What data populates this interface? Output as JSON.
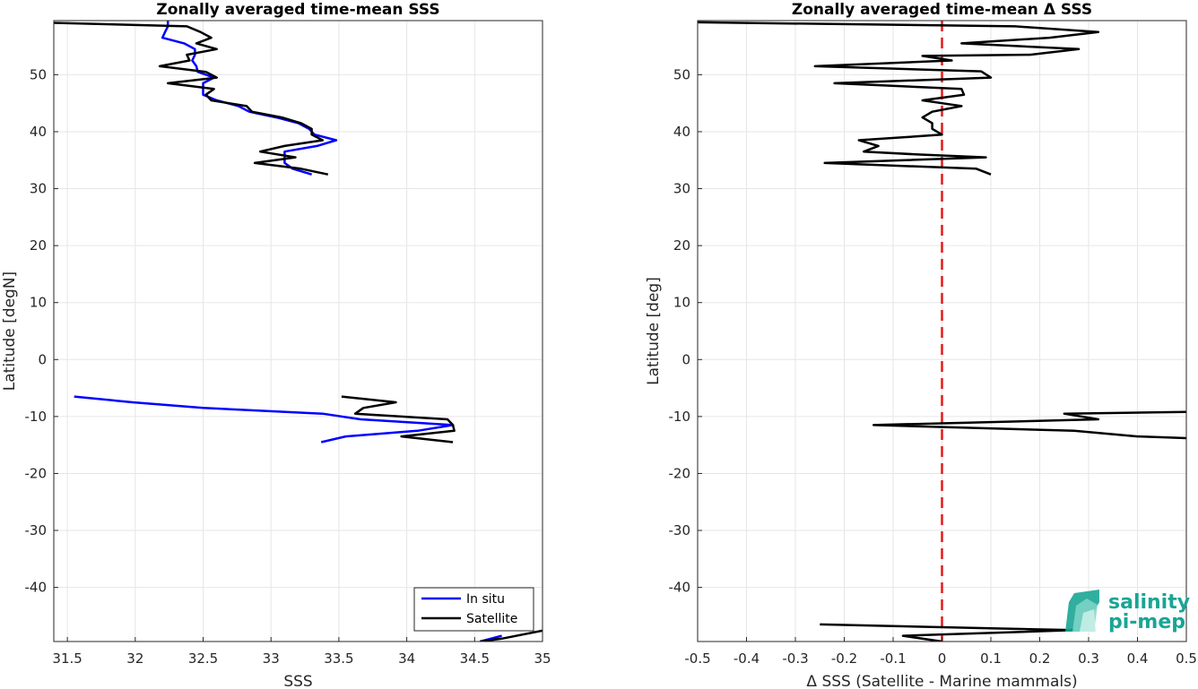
{
  "chart_data": [
    {
      "type": "line",
      "title": "Zonally averaged time-mean SSS",
      "xlabel": "SSS",
      "ylabel": "Latitude [degN]",
      "xlim": [
        31.4,
        35.0
      ],
      "ylim": [
        -49.5,
        59.5
      ],
      "xticks": [
        31.5,
        32,
        32.5,
        33,
        33.5,
        34,
        34.5,
        35
      ],
      "yticks": [
        -40,
        -30,
        -20,
        -10,
        0,
        10,
        20,
        30,
        40,
        50
      ],
      "grid": true,
      "legend": {
        "placement": "bottom-right",
        "entries": [
          "In situ",
          "Satellite"
        ]
      },
      "series": [
        {
          "name": "In situ",
          "color": "#0000ff",
          "segments": [
            [
              [
                32.24,
                59.5
              ],
              [
                32.24,
                58.5
              ],
              [
                32.22,
                57.5
              ],
              [
                32.2,
                56.5
              ],
              [
                32.36,
                55.5
              ],
              [
                32.44,
                54.5
              ],
              [
                32.44,
                53.5
              ],
              [
                32.42,
                52.5
              ],
              [
                32.45,
                51.5
              ],
              [
                32.46,
                50.5
              ],
              [
                32.58,
                49.5
              ],
              [
                32.5,
                48.5
              ],
              [
                32.5,
                47.5
              ],
              [
                32.5,
                46.5
              ],
              [
                32.6,
                45.5
              ],
              [
                32.76,
                44.5
              ],
              [
                32.84,
                43.5
              ],
              [
                33.04,
                42.5
              ],
              [
                33.2,
                41.5
              ],
              [
                33.28,
                40.5
              ],
              [
                33.32,
                39.5
              ],
              [
                33.48,
                38.5
              ],
              [
                33.34,
                37.5
              ],
              [
                33.1,
                36.5
              ],
              [
                33.1,
                35.5
              ],
              [
                33.1,
                34.5
              ],
              [
                33.16,
                33.5
              ],
              [
                33.3,
                32.5
              ]
            ],
            [
              [
                31.55,
                -6.5
              ],
              [
                31.98,
                -7.5
              ],
              [
                32.5,
                -8.5
              ],
              [
                33.38,
                -9.5
              ],
              [
                33.66,
                -10.5
              ],
              [
                34.34,
                -11.5
              ],
              [
                34.08,
                -12.5
              ],
              [
                33.55,
                -13.5
              ],
              [
                33.37,
                -14.5
              ]
            ],
            [
              [
                34.54,
                -49.5
              ],
              [
                34.7,
                -48.5
              ]
            ]
          ]
        },
        {
          "name": "Satellite",
          "color": "#000000",
          "segments": [
            [
              [
                31.4,
                59.1
              ],
              [
                32.38,
                58.5
              ],
              [
                32.48,
                57.5
              ],
              [
                32.56,
                56.5
              ],
              [
                32.45,
                55.5
              ],
              [
                32.6,
                54.5
              ],
              [
                32.38,
                53.5
              ],
              [
                32.4,
                52.5
              ],
              [
                32.18,
                51.5
              ],
              [
                32.52,
                50.5
              ],
              [
                32.6,
                49.5
              ],
              [
                32.24,
                48.5
              ],
              [
                32.58,
                47.5
              ],
              [
                32.52,
                46.5
              ],
              [
                32.56,
                45.5
              ],
              [
                32.82,
                44.5
              ],
              [
                32.86,
                43.5
              ],
              [
                33.08,
                42.5
              ],
              [
                33.22,
                41.5
              ],
              [
                33.3,
                40.5
              ],
              [
                33.3,
                39.5
              ],
              [
                33.38,
                38.5
              ],
              [
                33.1,
                37.5
              ],
              [
                32.92,
                36.5
              ],
              [
                33.18,
                35.5
              ],
              [
                32.88,
                34.5
              ],
              [
                33.22,
                33.5
              ],
              [
                33.42,
                32.5
              ]
            ],
            [
              [
                33.52,
                -6.5
              ],
              [
                33.92,
                -7.5
              ],
              [
                33.68,
                -8.5
              ],
              [
                33.62,
                -9.5
              ],
              [
                34.3,
                -10.5
              ],
              [
                34.34,
                -11.5
              ],
              [
                34.35,
                -12.5
              ],
              [
                33.96,
                -13.5
              ],
              [
                34.34,
                -14.5
              ]
            ],
            [
              [
                34.54,
                -49.5
              ],
              [
                34.7,
                -49
              ],
              [
                35.0,
                -47.6
              ]
            ]
          ]
        }
      ]
    },
    {
      "type": "line",
      "title": "Zonally averaged time-mean Δ SSS",
      "xlabel": "Δ SSS (Satellite - Marine mammals)",
      "ylabel": "Latitude [deg]",
      "xlim": [
        -0.5,
        0.5
      ],
      "ylim": [
        -49.5,
        59.5
      ],
      "xticks": [
        -0.5,
        -0.4,
        -0.3,
        -0.2,
        -0.1,
        0,
        0.1,
        0.2,
        0.3,
        0.4,
        0.5
      ],
      "yticks": [
        -40,
        -30,
        -20,
        -10,
        0,
        10,
        20,
        30,
        40,
        50
      ],
      "grid": true,
      "reference_line": {
        "x": 0,
        "color": "#e31a1c",
        "style": "dashed"
      },
      "series": [
        {
          "color": "#000000",
          "segments": [
            [
              [
                -0.5,
                59.2
              ],
              [
                0.15,
                58.5
              ],
              [
                0.32,
                57.5
              ],
              [
                0.22,
                56.5
              ],
              [
                0.04,
                55.5
              ],
              [
                0.28,
                54.5
              ],
              [
                0.18,
                53.5
              ],
              [
                -0.04,
                53.3
              ],
              [
                0.02,
                52.5
              ],
              [
                -0.26,
                51.5
              ],
              [
                0.08,
                50.6
              ],
              [
                0.1,
                49.5
              ],
              [
                -0.22,
                48.5
              ],
              [
                0.04,
                47.5
              ],
              [
                0.045,
                46.5
              ],
              [
                -0.04,
                45.5
              ],
              [
                0.0,
                45.0
              ],
              [
                0.04,
                44.5
              ],
              [
                -0.02,
                43.5
              ],
              [
                -0.04,
                42.5
              ],
              [
                -0.02,
                41.5
              ],
              [
                -0.02,
                40.5
              ],
              [
                0.0,
                39.5
              ],
              [
                -0.08,
                39.0
              ],
              [
                -0.17,
                38.5
              ],
              [
                -0.13,
                37.5
              ],
              [
                -0.16,
                36.5
              ],
              [
                -0.05,
                36.0
              ],
              [
                0.09,
                35.5
              ],
              [
                -0.24,
                34.5
              ],
              [
                0.07,
                33.5
              ],
              [
                0.1,
                32.5
              ]
            ],
            [
              [
                0.5,
                -9.2
              ],
              [
                0.25,
                -9.5
              ],
              [
                0.32,
                -10.5
              ],
              [
                -0.14,
                -11.5
              ],
              [
                0.27,
                -12.5
              ],
              [
                0.4,
                -13.5
              ],
              [
                0.5,
                -13.8
              ]
            ],
            [
              [
                -0.25,
                -46.5
              ],
              [
                0.27,
                -47.5
              ],
              [
                -0.08,
                -48.5
              ],
              [
                0.0,
                -49.5
              ]
            ]
          ]
        }
      ]
    }
  ],
  "logo": {
    "line1": "salinity",
    "line2": "pi-mep",
    "color": "#1aa595"
  }
}
